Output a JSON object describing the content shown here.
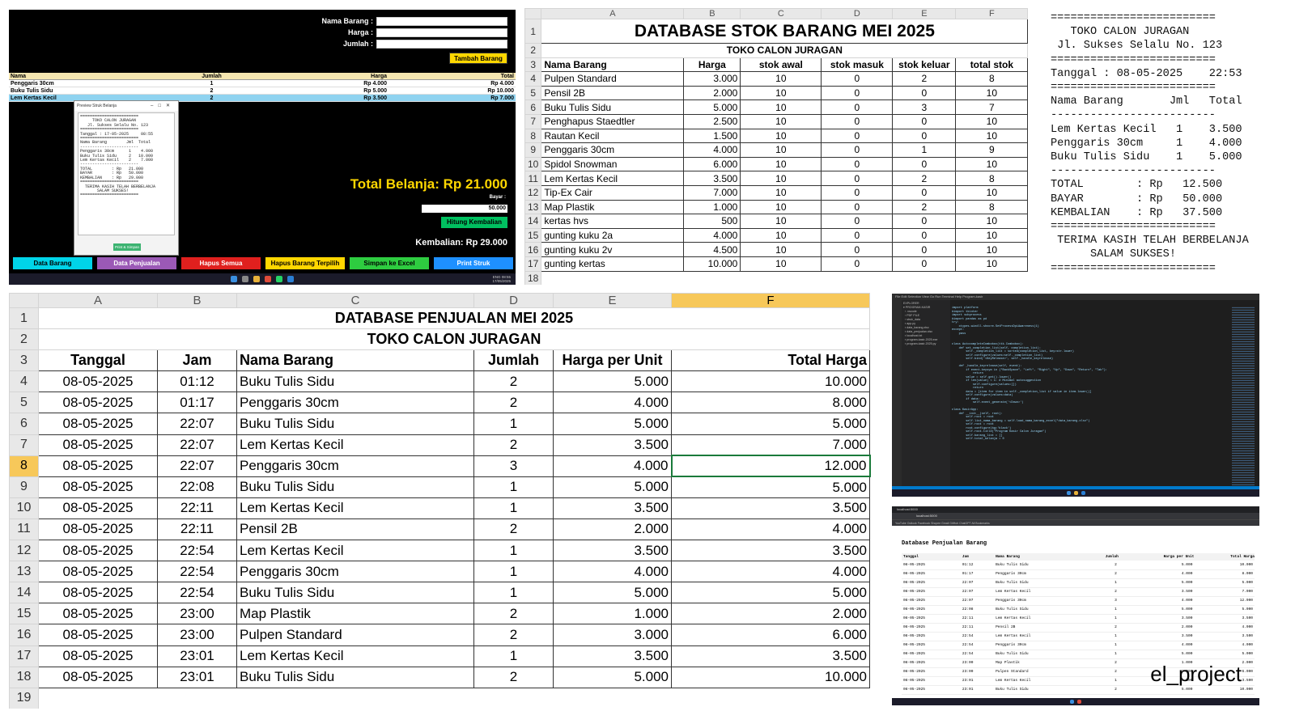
{
  "pos": {
    "labels": {
      "nama": "Nama Barang :",
      "harga": "Harga :",
      "jumlah": "Jumlah :"
    },
    "tambah_btn": "Tambah Barang",
    "table_headers": [
      "Nama",
      "Jumlah",
      "Harga",
      "Total"
    ],
    "rows": [
      [
        "Penggaris 30cm",
        "1",
        "Rp 4.000",
        "Rp 4.000"
      ],
      [
        "Buku Tulis Sidu",
        "2",
        "Rp 5.000",
        "Rp 10.000"
      ],
      [
        "Lem Kertas Kecil",
        "2",
        "Rp 3.500",
        "Rp 7.000"
      ]
    ],
    "preview_title": "Preview Struk Belanja",
    "preview_text": "========================\n     TOKO CALON JURAGAN\n   Jl. Sukses Selalu No. 123\n========================\nTanggal : 17-05-2025     08:55\n========================\nNama Barang        Jml  Total\n------------------------\nPenggaris 30cm      1    4.000\nBuku Tulis Sidu     2   10.000\nLem Kertas Kecil    2    7.000\n------------------------\nTOTAL        : Rp   21.000\nBAYAR        : Rp   50.000\nKEMBALIAN    : Rp   29.000\n========================\n  TERIMA KASIH TELAH BERBELANJA\n       SALAM SUKSES!\n========================",
    "preview_btn": "Print & Simpan",
    "total": "Total Belanja: Rp 21.000",
    "bayar_label": "Bayar :",
    "bayar_value": "50.000",
    "hitung_btn": "Hitung Kembalian",
    "kembalian": "Kembalian: Rp 29.000",
    "nav_buttons": [
      "Data Barang",
      "Data Penjualan",
      "Hapus Semua",
      "Hapus Barang Terpilih",
      "Simpan ke Excel",
      "Print Struk"
    ],
    "nav_colors": [
      "#00d4e8",
      "#9b59b6",
      "#e0201e",
      "#ffd700",
      "#2ecc40",
      "#1e90ff"
    ],
    "tray_time": "08:55",
    "tray_date": "17/05/2025",
    "tray_lang": "ENG"
  },
  "stock": {
    "cols": [
      "A",
      "B",
      "C",
      "D",
      "E",
      "F"
    ],
    "title": "DATABASE STOK BARANG MEI 2025",
    "subtitle": "TOKO CALON JURAGAN",
    "headers": [
      "Nama Barang",
      "Harga",
      "stok awal",
      "stok masuk",
      "stok keluar",
      "total stok"
    ],
    "rows": [
      [
        "Pulpen Standard",
        "3.000",
        "10",
        "0",
        "2",
        "8"
      ],
      [
        "Pensil 2B",
        "2.000",
        "10",
        "0",
        "0",
        "10"
      ],
      [
        "Buku Tulis Sidu",
        "5.000",
        "10",
        "0",
        "3",
        "7"
      ],
      [
        "Penghapus Staedtler",
        "2.500",
        "10",
        "0",
        "0",
        "10"
      ],
      [
        "Rautan Kecil",
        "1.500",
        "10",
        "0",
        "0",
        "10"
      ],
      [
        "Penggaris 30cm",
        "4.000",
        "10",
        "0",
        "1",
        "9"
      ],
      [
        "Spidol Snowman",
        "6.000",
        "10",
        "0",
        "0",
        "10"
      ],
      [
        "Lem Kertas Kecil",
        "3.500",
        "10",
        "0",
        "2",
        "8"
      ],
      [
        "Tip-Ex Cair",
        "7.000",
        "10",
        "0",
        "0",
        "10"
      ],
      [
        "Map Plastik",
        "1.000",
        "10",
        "0",
        "2",
        "8"
      ],
      [
        "kertas hvs",
        "500",
        "10",
        "0",
        "0",
        "10"
      ],
      [
        "gunting kuku 2a",
        "4.000",
        "10",
        "0",
        "0",
        "10"
      ],
      [
        "gunting kuku 2v",
        "4.500",
        "10",
        "0",
        "0",
        "10"
      ],
      [
        "gunting kertas",
        "10.000",
        "10",
        "0",
        "0",
        "10"
      ]
    ]
  },
  "receipt": {
    "text": "=========================\n   TOKO CALON JURAGAN\n Jl. Sukses Selalu No. 123\n=========================\nTanggal : 08-05-2025    22:53\n=========================\nNama Barang       Jml   Total\n-------------------------\nLem Kertas Kecil   1    3.500\nPenggaris 30cm     1    4.000\nBuku Tulis Sidu    1    5.000\n-------------------------\nTOTAL        : Rp   12.500\nBAYAR        : Rp   50.000\nKEMBALIAN    : Rp   37.500\n=========================\n TERIMA KASIH TELAH BERBELANJA\n      SALAM SUKSES!\n========================="
  },
  "sales": {
    "cols": [
      "A",
      "B",
      "C",
      "D",
      "E",
      "F"
    ],
    "title": "DATABASE PENJUALAN MEI 2025",
    "subtitle": "TOKO CALON JURAGAN",
    "headers": [
      "Tanggal",
      "Jam",
      "Nama Barang",
      "Jumlah",
      "Harga per Unit",
      "Total Harga"
    ],
    "rows": [
      [
        "08-05-2025",
        "01:12",
        "Buku Tulis Sidu",
        "2",
        "5.000",
        "10.000"
      ],
      [
        "08-05-2025",
        "01:17",
        "Penggaris 30cm",
        "2",
        "4.000",
        "8.000"
      ],
      [
        "08-05-2025",
        "22:07",
        "Buku Tulis Sidu",
        "1",
        "5.000",
        "5.000"
      ],
      [
        "08-05-2025",
        "22:07",
        "Lem Kertas Kecil",
        "2",
        "3.500",
        "7.000"
      ],
      [
        "08-05-2025",
        "22:07",
        "Penggaris 30cm",
        "3",
        "4.000",
        "12.000"
      ],
      [
        "08-05-2025",
        "22:08",
        "Buku Tulis Sidu",
        "1",
        "5.000",
        "5.000"
      ],
      [
        "08-05-2025",
        "22:11",
        "Lem Kertas Kecil",
        "1",
        "3.500",
        "3.500"
      ],
      [
        "08-05-2025",
        "22:11",
        "Pensil 2B",
        "2",
        "2.000",
        "4.000"
      ],
      [
        "08-05-2025",
        "22:54",
        "Lem Kertas Kecil",
        "1",
        "3.500",
        "3.500"
      ],
      [
        "08-05-2025",
        "22:54",
        "Penggaris 30cm",
        "1",
        "4.000",
        "4.000"
      ],
      [
        "08-05-2025",
        "22:54",
        "Buku Tulis Sidu",
        "1",
        "5.000",
        "5.000"
      ],
      [
        "08-05-2025",
        "23:00",
        "Map Plastik",
        "2",
        "1.000",
        "2.000"
      ],
      [
        "08-05-2025",
        "23:00",
        "Pulpen Standard",
        "2",
        "3.000",
        "6.000"
      ],
      [
        "08-05-2025",
        "23:01",
        "Lem Kertas Kecil",
        "1",
        "3.500",
        "3.500"
      ],
      [
        "08-05-2025",
        "23:01",
        "Buku Tulis Sidu",
        "2",
        "5.000",
        "10.000"
      ]
    ]
  },
  "vscode": {
    "menu": "File  Edit  Selection  View  Go  Run  Terminal  Help        Program-kasir",
    "side": "EXPLORER\n▾ PROGRAM-KASIR\n  › .vscode\n  › PDF FILE\n  › struk_data\n  ▪ app.py\n  ▪ data_barang.xlsx\n  ▪ data_penjualan.xlsx\n  ▪ localhost.txt\n  ▪ program-kasir-2025.exe\n  ▪ program-kasir-2025.py",
    "code": "import platform\n#import tkinter\nimport subprocess\n#import pandas as pd\ntry:\n    ctypes.windll.shcore.SetProcessDpiAwareness(1)\nexcept:\n    pass\n\n\nclass AutocompleteCombobox(ttk.Combobox):\n    def set_completion_list(self, completion_list):\n        self._completion_list = sorted(completion_list, key=str.lower)\n        self.configure(values=self._completion_list)\n        self.bind('<KeyRelease>', self._handle_keyrelease)\n\n    def _handle_keyrelease(self, event):\n        if event.keysym in (\"BackSpace\", \"Left\", \"Right\", \"Up\", \"Down\", \"Return\", \"Tab\"):\n            return\n        value = self.get().lower()\n        if len(value) < 1: # Minimal autosuggestion\n            self.configure(values=[])\n            return\n        data = [item for item in self._completion_list if value in item.lower()]\n        self.configure(values=data)\n        if data:\n            self.event_generate('<Down>')\n\nclass KasirApp:\n    def __init__(self, root):\n        self.root = root\n        self.list_nama_barang = self.load_nama_barang_excel(\"data_barang.xlsx\")\n        self.root = root\n        root.configure(bg='black')\n        self.root.title(\"Program Kasir Calon Juragan\")\n        self.barang_list = []\n        self.total_belanja = 0"
  },
  "browser": {
    "tab": "localhost:5000",
    "url": "localhost:5000",
    "bookmarks": "YouTube   Outlook   Facebook   Shopee   Gmail   GitHub   ChatGPT   All Bookmarks",
    "heading": "Database Penjualan Barang",
    "headers": [
      "Tanggal",
      "Jam",
      "Nama Barang",
      "Jumlah",
      "Harga per Unit",
      "Total Harga"
    ],
    "watermark": "el_project"
  }
}
